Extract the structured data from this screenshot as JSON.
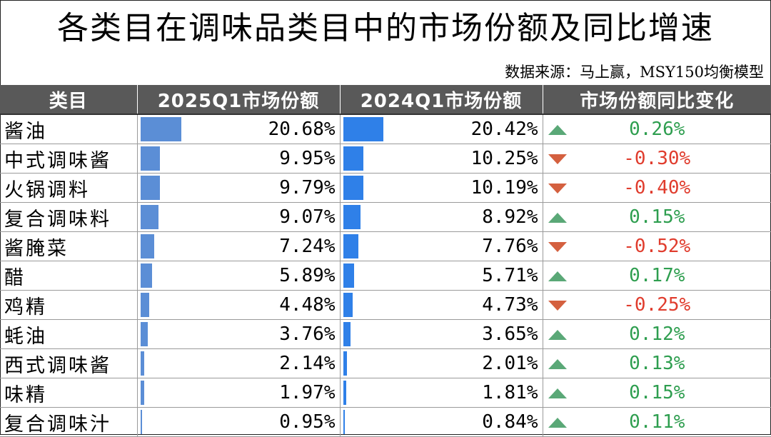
{
  "title": "各类目在调味品类目中的市场份额及同比增速",
  "source": "数据来源：马上赢，MSY150均衡模型",
  "colors": {
    "header_bg": "#595959",
    "bar_2025": "#5b8ed6",
    "bar_2024": "#2f80e8",
    "up": "#2e9e4f",
    "down": "#e03c2d",
    "arrow_up": "#5aa877",
    "arrow_down": "#d4603f"
  },
  "header": {
    "category": "类目",
    "share_2025": "2025Q1市场份额",
    "share_2024": "2024Q1市场份额",
    "change": "市场份额同比变化"
  },
  "rows": [
    {
      "category": "酱油",
      "share_2025": "20.68%",
      "share_2024": "20.42%",
      "change": "0.26%",
      "direction": "up"
    },
    {
      "category": "中式调味酱",
      "share_2025": "9.95%",
      "share_2024": "10.25%",
      "change": "-0.30%",
      "direction": "down"
    },
    {
      "category": "火锅调料",
      "share_2025": "9.79%",
      "share_2024": "10.19%",
      "change": "-0.40%",
      "direction": "down"
    },
    {
      "category": "复合调味料",
      "share_2025": "9.07%",
      "share_2024": "8.92%",
      "change": "0.15%",
      "direction": "up"
    },
    {
      "category": "酱腌菜",
      "share_2025": "7.24%",
      "share_2024": "7.76%",
      "change": "-0.52%",
      "direction": "down"
    },
    {
      "category": "醋",
      "share_2025": "5.89%",
      "share_2024": "5.71%",
      "change": "0.17%",
      "direction": "up"
    },
    {
      "category": "鸡精",
      "share_2025": "4.48%",
      "share_2024": "4.73%",
      "change": "-0.25%",
      "direction": "down"
    },
    {
      "category": "蚝油",
      "share_2025": "3.76%",
      "share_2024": "3.65%",
      "change": "0.12%",
      "direction": "up"
    },
    {
      "category": "西式调味酱",
      "share_2025": "2.14%",
      "share_2024": "2.01%",
      "change": "0.13%",
      "direction": "up"
    },
    {
      "category": "味精",
      "share_2025": "1.97%",
      "share_2024": "1.81%",
      "change": "0.15%",
      "direction": "up"
    },
    {
      "category": "复合调味汁",
      "share_2025": "0.95%",
      "share_2024": "0.84%",
      "change": "0.11%",
      "direction": "up"
    }
  ],
  "chart_data": {
    "type": "table",
    "title": "各类目在调味品类目中的市场份额及同比增速",
    "columns": [
      "类目",
      "2025Q1市场份额",
      "2024Q1市场份额",
      "市场份额同比变化"
    ],
    "categories": [
      "酱油",
      "中式调味酱",
      "火锅调料",
      "复合调味料",
      "酱腌菜",
      "醋",
      "鸡精",
      "蚝油",
      "西式调味酱",
      "味精",
      "复合调味汁"
    ],
    "series": [
      {
        "name": "2025Q1市场份额",
        "values": [
          20.68,
          9.95,
          9.79,
          9.07,
          7.24,
          5.89,
          4.48,
          3.76,
          2.14,
          1.97,
          0.95
        ]
      },
      {
        "name": "2024Q1市场份额",
        "values": [
          20.42,
          10.25,
          10.19,
          8.92,
          7.76,
          5.71,
          4.73,
          3.65,
          2.01,
          1.81,
          0.84
        ]
      },
      {
        "name": "市场份额同比变化",
        "values": [
          0.26,
          -0.3,
          -0.4,
          0.15,
          -0.52,
          0.17,
          -0.25,
          0.12,
          0.13,
          0.15,
          0.11
        ]
      }
    ],
    "bar_scale_max": 100
  }
}
